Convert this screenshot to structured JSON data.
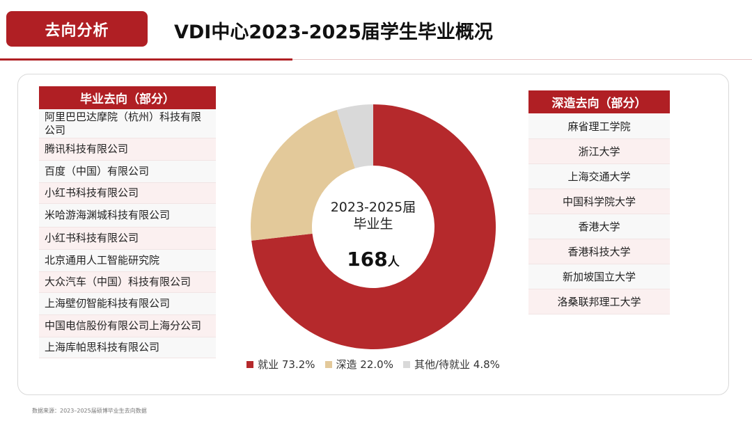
{
  "header": {
    "tag": "去向分析",
    "title": "VDI中心2023-2025届学生毕业概况"
  },
  "left_list": {
    "title": "毕业去向（部分）",
    "items": [
      "阿里巴巴达摩院（杭州）科技有限公司",
      "腾讯科技有限公司",
      "百度（中国）有限公司",
      "小红书科技有限公司",
      "米哈游海渊城科技有限公司",
      "小红书科技有限公司",
      "北京通用人工智能研究院",
      "大众汽车（中国）科技有限公司",
      "上海壁仞智能科技有限公司",
      "中国电信股份有限公司上海分公司",
      "上海库帕思科技有限公司"
    ]
  },
  "right_list": {
    "title": "深造去向（部分）",
    "items": [
      "麻省理工学院",
      "浙江大学",
      "上海交通大学",
      "中国科学院大学",
      "香港大学",
      "香港科技大学",
      "新加坡国立大学",
      "洛桑联邦理工大学"
    ]
  },
  "chart_data": {
    "type": "pie",
    "donut": true,
    "center_label": "2023-2025届\n毕业生",
    "center_value": "168",
    "center_unit": "人",
    "slices": [
      {
        "label": "就业",
        "value": 73.2,
        "display": "就业 73.2%",
        "color": "#b5292c"
      },
      {
        "label": "深造",
        "value": 22.0,
        "display": "深造 22.0%",
        "color": "#e3c99a"
      },
      {
        "label": "其他/待就业",
        "value": 4.8,
        "display": "其他/待就业 4.8%",
        "color": "#d9d9d9"
      }
    ],
    "legend_position": "bottom"
  },
  "footer": {
    "source": "数据来源：2023–2025届硕博毕业生去向数据"
  }
}
